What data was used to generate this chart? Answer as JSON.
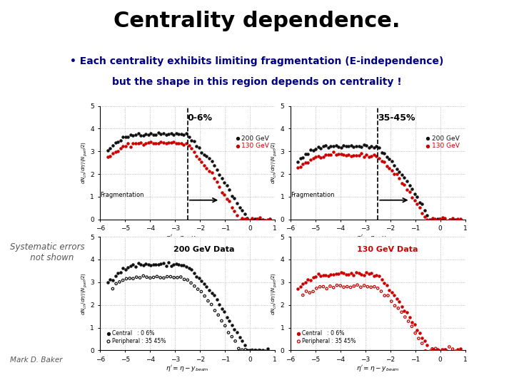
{
  "title": "Centrality dependence.",
  "title_color": "#000000",
  "title_fontsize": 22,
  "bullet_line1": "• Each centrality exhibits limiting fragmentation (E-independence)",
  "bullet_line2": "but the shape in this region depends on centrality !",
  "bullet_color": "#000080",
  "bullet_fontsize": 10,
  "bullet_bg": "#ffffcc",
  "background_color": "#ffffff",
  "plot_bg": "#ffffff",
  "top_left_label": "0-6%",
  "top_right_label": "35-45%",
  "bottom_left_label": "200 GeV Data",
  "bottom_right_label": "130 GeV Data",
  "bottom_right_label_color": "#cc0000",
  "legend_200": "200 GeV",
  "legend_130": "130 GeV",
  "color_200": "#111111",
  "color_130": "#cc0000",
  "ylim": [
    0,
    5
  ],
  "xlim": [
    -6,
    1
  ],
  "fragmentation_x": -2.5,
  "fragmentation_label": "Fragmentation",
  "systematic_text": "Systematic errors\n   not shown",
  "mark_baker": "Mark D. Baker",
  "central_label_200": "Central   : 0 6%",
  "peripheral_label_200": "Peripheral : 35 45%",
  "central_label_130": "Central   : 0 6%",
  "peripheral_label_130": "Peripheral : 35 45%"
}
